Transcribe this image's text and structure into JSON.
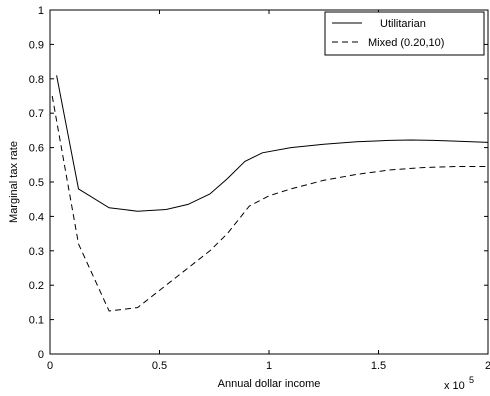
{
  "chart_data": {
    "type": "line",
    "xlabel": "Annual dollar income",
    "ylabel": "Marginal tax rate",
    "x_multiplier_label": "x 10",
    "x_multiplier_exp": "5",
    "xlim": [
      0,
      2
    ],
    "ylim": [
      0,
      1
    ],
    "x_ticks": [
      0,
      0.5,
      1,
      1.5,
      2
    ],
    "x_tick_labels": [
      "0",
      "0.5",
      "1",
      "1.5",
      "2"
    ],
    "y_ticks": [
      0,
      0.1,
      0.2,
      0.3,
      0.4,
      0.5,
      0.6,
      0.7,
      0.8,
      0.9,
      1
    ],
    "y_tick_labels": [
      "0",
      "0.1",
      "0.2",
      "0.3",
      "0.4",
      "0.5",
      "0.6",
      "0.7",
      "0.8",
      "0.9",
      "1"
    ],
    "grid": false,
    "legend_position": "top-right",
    "series": [
      {
        "name": "Utilitarian",
        "style": "solid",
        "color": "#000000",
        "x": [
          0.03,
          0.13,
          0.27,
          0.4,
          0.53,
          0.63,
          0.73,
          0.81,
          0.89,
          0.97,
          1.1,
          1.25,
          1.4,
          1.55,
          1.65,
          1.75,
          1.85,
          2.0
        ],
        "y": [
          0.81,
          0.48,
          0.425,
          0.415,
          0.42,
          0.435,
          0.465,
          0.51,
          0.56,
          0.585,
          0.6,
          0.61,
          0.617,
          0.621,
          0.622,
          0.621,
          0.619,
          0.615
        ]
      },
      {
        "name": "Mixed (0.20,10)",
        "style": "dashed",
        "color": "#000000",
        "x": [
          0.01,
          0.13,
          0.27,
          0.4,
          0.53,
          0.63,
          0.73,
          0.81,
          0.91,
          1.0,
          1.1,
          1.25,
          1.4,
          1.55,
          1.7,
          1.85,
          2.0
        ],
        "y": [
          0.75,
          0.32,
          0.125,
          0.135,
          0.2,
          0.25,
          0.3,
          0.35,
          0.43,
          0.46,
          0.48,
          0.505,
          0.522,
          0.535,
          0.542,
          0.545,
          0.545
        ]
      }
    ]
  }
}
